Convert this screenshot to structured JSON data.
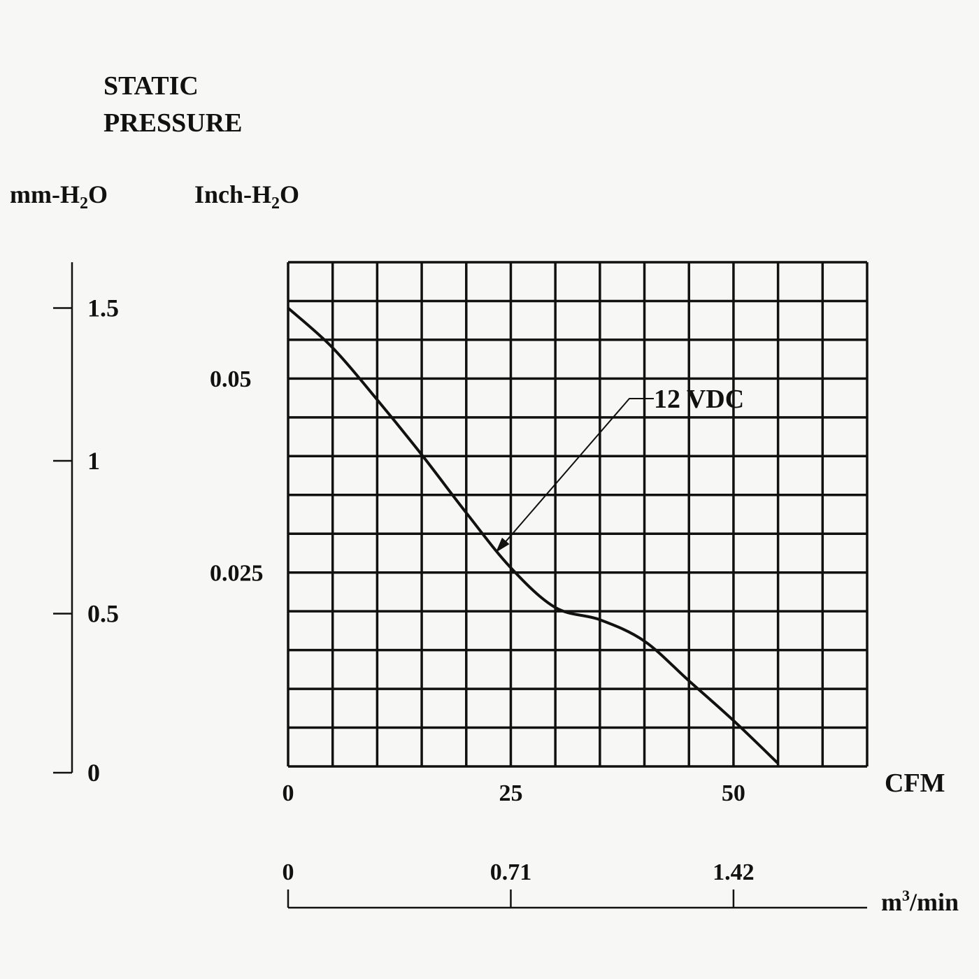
{
  "chart_data": {
    "type": "line",
    "title_line1": "STATIC",
    "title_line2": "PRESSURE",
    "mm_axis": {
      "label_prefix": "mm-H",
      "label_sub": "2",
      "label_suffix": "O",
      "ticks": [
        {
          "value": 0,
          "label": "0"
        },
        {
          "value": 0.5,
          "label": "0.5"
        },
        {
          "value": 1,
          "label": "1"
        },
        {
          "value": 1.5,
          "label": "1.5"
        }
      ],
      "range": [
        0,
        1.65
      ]
    },
    "inch_axis": {
      "label_prefix": "Inch-H",
      "label_sub": "2",
      "label_suffix": "O",
      "ticks": [
        {
          "value": 0.025,
          "label": "0.025"
        },
        {
          "value": 0.05,
          "label": "0.05"
        }
      ]
    },
    "x_axis": {
      "label": "CFM",
      "range": [
        0,
        65
      ],
      "ticks": [
        {
          "value": 0,
          "label": "0"
        },
        {
          "value": 25,
          "label": "25"
        },
        {
          "value": 50,
          "label": "50"
        }
      ]
    },
    "x2_axis": {
      "label_prefix": "m",
      "label_sup": "3",
      "label_suffix": "/min",
      "ticks": [
        {
          "cfm": 0,
          "label": "0"
        },
        {
          "cfm": 25,
          "label": "0.71"
        },
        {
          "cfm": 50,
          "label": "1.42"
        }
      ]
    },
    "grid": true,
    "series": [
      {
        "name": "12 VDC",
        "x": [
          0,
          5,
          10,
          15,
          20,
          25,
          30,
          35,
          40,
          45,
          50,
          55
        ],
        "y": [
          1.5,
          1.37,
          1.2,
          1.02,
          0.83,
          0.65,
          0.52,
          0.48,
          0.41,
          0.28,
          0.15,
          0.01
        ]
      }
    ],
    "annotation": {
      "text": "12 VDC",
      "target_x": 23.3,
      "target_y": 0.7
    }
  }
}
